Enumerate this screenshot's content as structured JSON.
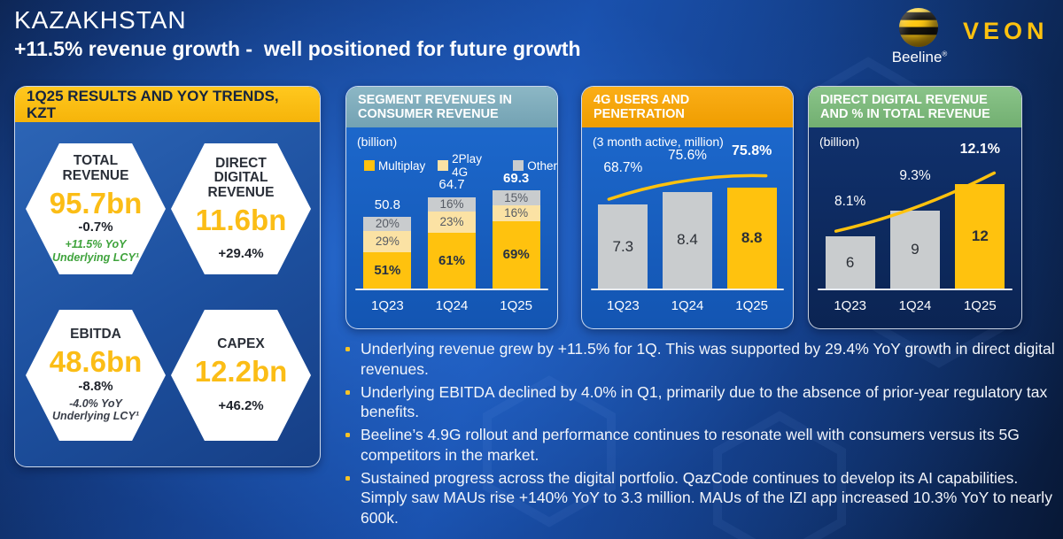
{
  "slide": {
    "title": "KAZAKHSTAN",
    "subtitle": "+11.5% revenue growth -  well positioned for future growth"
  },
  "logo": {
    "beeline": "Beeline",
    "registered": "®",
    "veon": "VEON"
  },
  "colors": {
    "accent_yellow": "#FFC20E",
    "bar_cream": "#FBE2A4",
    "bar_gray": "#C9CCCE",
    "header_teal": "#7FAFC0",
    "header_orange": "#F7A800",
    "header_green": "#7FBD7D",
    "note_green": "#3FA33C"
  },
  "results_panel": {
    "header": "1Q25 RESULTS AND YOY TRENDS, KZT",
    "metrics": [
      {
        "title": "TOTAL REVENUE",
        "value": "95.7bn",
        "change": "-0.7%",
        "note": "+11.5% YoY Underlying LCY¹",
        "note_style": "green"
      },
      {
        "title": "DIRECT DIGITAL REVENUE",
        "value": "11.6bn",
        "change": "+29.4%",
        "note": "",
        "note_style": ""
      },
      {
        "title": "EBITDA",
        "value": "48.6bn",
        "change": "-8.8%",
        "note": "-4.0% YoY Underlying LCY¹",
        "note_style": "dark"
      },
      {
        "title": "CAPEX",
        "value": "12.2bn",
        "change": "+46.2%",
        "note": "",
        "note_style": ""
      }
    ]
  },
  "chart_data": [
    {
      "type": "bar",
      "stacked": true,
      "title": "SEGMENT REVENUES IN CONSUMER REVENUE",
      "unit": "(billion)",
      "categories": [
        "1Q23",
        "1Q24",
        "1Q25"
      ],
      "totals": [
        50.8,
        64.7,
        69.3
      ],
      "series": [
        {
          "name": "Multiplay",
          "values_pct": [
            51,
            61,
            69
          ],
          "color": "#FFC20E"
        },
        {
          "name": "2Play 4G",
          "values_pct": [
            29,
            23,
            16
          ],
          "color": "#FBE2A4"
        },
        {
          "name": "Other",
          "values_pct": [
            20,
            16,
            15
          ],
          "color": "#C9CCCE"
        }
      ],
      "legend_position": "top",
      "grid": false
    },
    {
      "type": "bar",
      "overlay": "line",
      "title": "4G USERS AND PENETRATION",
      "unit": "(3 month active, million)",
      "categories": [
        "1Q23",
        "1Q24",
        "1Q25"
      ],
      "values": [
        7.3,
        8.4,
        8.8
      ],
      "line_labels": [
        "68.7%",
        "75.6%",
        "75.8%"
      ],
      "line_values": [
        68.7,
        75.6,
        75.8
      ],
      "bar_colors": [
        "#C9CCCE",
        "#C9CCCE",
        "#FFC20E"
      ],
      "highlight_index": 2,
      "grid": false
    },
    {
      "type": "bar",
      "overlay": "line",
      "title": "DIRECT DIGITAL REVENUE AND % IN TOTAL REVENUE",
      "unit": "(billion)",
      "categories": [
        "1Q23",
        "1Q24",
        "1Q25"
      ],
      "values": [
        6,
        9,
        12
      ],
      "line_labels": [
        "8.1%",
        "9.3%",
        "12.1%"
      ],
      "line_values": [
        8.1,
        9.3,
        12.1
      ],
      "bar_colors": [
        "#C9CCCE",
        "#C9CCCE",
        "#FFC20E"
      ],
      "highlight_index": 2,
      "grid": false
    }
  ],
  "bullets": [
    "Underlying revenue grew by +11.5% for 1Q. This was supported by 29.4% YoY growth in direct digital revenues.",
    "Underlying EBITDA declined by 4.0% in Q1, primarily due to the absence of prior-year regulatory tax benefits.",
    "Beeline’s 4.9G rollout and performance continues to resonate well with consumers versus its 5G competitors in the market.",
    "Sustained progress across the digital portfolio. QazCode continues to develop its AI capabilities. Simply saw MAUs rise +140% YoY to 3.3 million. MAUs of the IZI app increased 10.3% YoY to nearly 600k."
  ]
}
